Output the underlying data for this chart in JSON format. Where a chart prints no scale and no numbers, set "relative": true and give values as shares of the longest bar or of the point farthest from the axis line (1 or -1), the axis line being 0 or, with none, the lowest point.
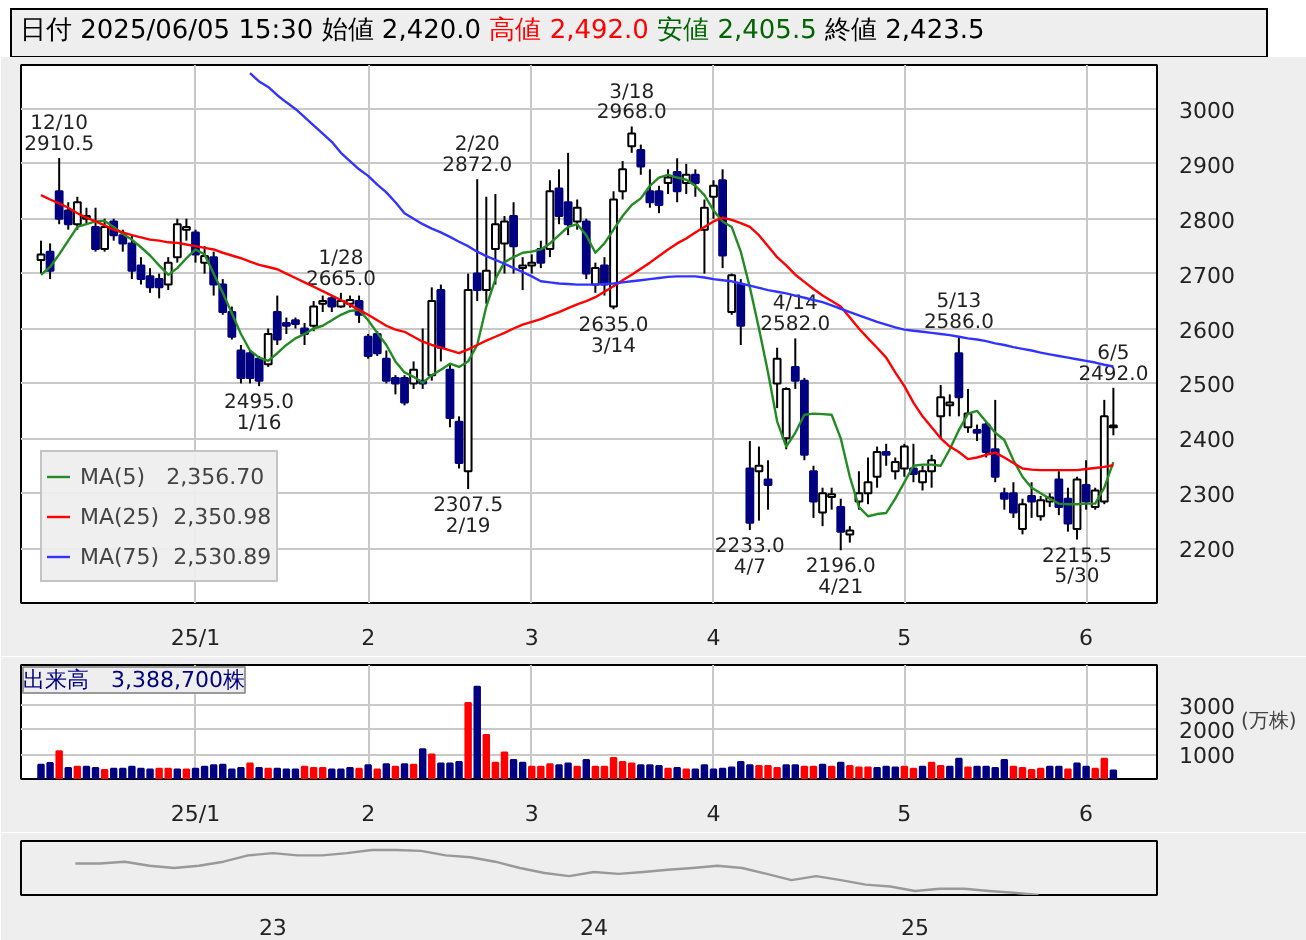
{
  "chart_data": [
    {
      "type": "candlestick",
      "title": "日付 2025/06/05 15:30",
      "annotations": [
        "始値 2,420.0",
        "高値 2,492.0",
        "安値 2,405.5",
        "終値 2,423.5",
        {
          "text": "12/10\n2910.5",
          "y": 2910.5
        },
        {
          "text": "1/28\n2665.0",
          "y": 2665.0
        },
        {
          "text": "2495.0\n1/16",
          "y": 2495.0
        },
        {
          "text": "2/20\n2872.0",
          "y": 2872.0
        },
        {
          "text": "2307.5\n2/19",
          "y": 2307.5
        },
        {
          "text": "3/18\n2968.0",
          "y": 2968.0
        },
        {
          "text": "2635.0\n3/14",
          "y": 2635.0
        },
        {
          "text": "4/14\n2582.0",
          "y": 2582.0
        },
        {
          "text": "2233.0\n4/7",
          "y": 2233.0
        },
        {
          "text": "2196.0\n4/21",
          "y": 2196.0
        },
        {
          "text": "5/13\n2586.0",
          "y": 2586.0
        },
        {
          "text": "2215.5\n5/30",
          "y": 2215.5
        },
        {
          "text": "6/5\n2492.0",
          "y": 2492.0
        }
      ],
      "categories": [
        null,
        null,
        null,
        null,
        null,
        null,
        null,
        null,
        null,
        null,
        null,
        null,
        null,
        null,
        null,
        null,
        null,
        "25/1",
        null,
        null,
        null,
        null,
        null,
        null,
        null,
        null,
        null,
        null,
        null,
        null,
        null,
        null,
        null,
        null,
        null,
        null,
        "2",
        null,
        null,
        null,
        null,
        null,
        null,
        null,
        null,
        null,
        null,
        null,
        null,
        null,
        null,
        null,
        null,
        null,
        "3",
        null,
        null,
        null,
        null,
        null,
        null,
        null,
        null,
        null,
        null,
        null,
        null,
        null,
        null,
        null,
        null,
        null,
        null,
        null,
        "4",
        null,
        null,
        null,
        null,
        null,
        null,
        null,
        null,
        null,
        null,
        null,
        null,
        null,
        null,
        null,
        null,
        null,
        null,
        null,
        null,
        "5",
        null,
        null,
        null,
        null,
        null,
        null,
        null,
        null,
        null,
        null,
        null,
        null,
        null,
        null,
        null,
        null,
        null,
        null,
        null,
        "6",
        null,
        null,
        null
      ],
      "ohlc": [
        [
          2725,
          2760,
          2700,
          2735
        ],
        [
          2740,
          2755,
          2690,
          2705
        ],
        [
          2850,
          2910.5,
          2790,
          2800
        ],
        [
          2815,
          2830,
          2780,
          2790
        ],
        [
          2790,
          2840,
          2780,
          2830
        ],
        [
          2800,
          2820,
          2790,
          2805
        ],
        [
          2785,
          2820,
          2740,
          2745
        ],
        [
          2745,
          2800,
          2740,
          2785
        ],
        [
          2795,
          2800,
          2760,
          2770
        ],
        [
          2770,
          2780,
          2740,
          2755
        ],
        [
          2755,
          2770,
          2690,
          2705
        ],
        [
          2715,
          2730,
          2680,
          2690
        ],
        [
          2695,
          2710,
          2665,
          2675
        ],
        [
          2690,
          2700,
          2655,
          2675
        ],
        [
          2680,
          2730,
          2670,
          2720
        ],
        [
          2730,
          2800,
          2720,
          2790
        ],
        [
          2780,
          2800,
          2760,
          2785
        ],
        [
          2775,
          2780,
          2720,
          2735
        ],
        [
          2720,
          2750,
          2700,
          2732
        ],
        [
          2730,
          2740,
          2660,
          2680
        ],
        [
          2680,
          2690,
          2625,
          2630
        ],
        [
          2630,
          2640,
          2580,
          2585
        ],
        [
          2560,
          2570,
          2500,
          2510
        ],
        [
          2555,
          2560,
          2500,
          2510
        ],
        [
          2545,
          2550,
          2495.0,
          2505
        ],
        [
          2535,
          2600,
          2530,
          2590
        ],
        [
          2630,
          2660,
          2570,
          2580
        ],
        [
          2610,
          2620,
          2590,
          2605
        ],
        [
          2615,
          2620,
          2600,
          2608
        ],
        [
          2600,
          2610,
          2570,
          2590
        ],
        [
          2605,
          2650,
          2595,
          2640
        ],
        [
          2645,
          2660,
          2630,
          2650
        ],
        [
          2655,
          2660,
          2630,
          2640
        ],
        [
          2640,
          2665.0,
          2638,
          2650
        ],
        [
          2645,
          2660,
          2638,
          2652
        ],
        [
          2650,
          2660,
          2610,
          2625
        ],
        [
          2585,
          2590,
          2545,
          2550
        ],
        [
          2590,
          2595,
          2550,
          2555
        ],
        [
          2545,
          2560,
          2500,
          2505
        ],
        [
          2510,
          2515,
          2480,
          2500
        ],
        [
          2510,
          2515,
          2460,
          2465
        ],
        [
          2500,
          2540,
          2490,
          2525
        ],
        [
          2505,
          2600,
          2490,
          2500
        ],
        [
          2515,
          2675,
          2505,
          2650
        ],
        [
          2670,
          2680,
          2540,
          2565
        ],
        [
          2525,
          2535,
          2420,
          2437
        ],
        [
          2430,
          2440,
          2345,
          2355
        ],
        [
          2340,
          2700,
          2307.5,
          2670
        ],
        [
          2700,
          2872.0,
          2650,
          2670
        ],
        [
          2670,
          2840,
          2645,
          2705
        ],
        [
          2745,
          2845,
          2680,
          2790
        ],
        [
          2755,
          2805,
          2700,
          2795
        ],
        [
          2805,
          2830,
          2700,
          2750
        ],
        [
          2710,
          2730,
          2670,
          2715
        ],
        [
          2715,
          2735,
          2700,
          2720
        ],
        [
          2745,
          2760,
          2710,
          2720
        ],
        [
          2745,
          2870,
          2730,
          2850
        ],
        [
          2855,
          2890,
          2790,
          2805
        ],
        [
          2830,
          2920,
          2770,
          2790
        ],
        [
          2795,
          2835,
          2780,
          2820
        ],
        [
          2795,
          2800,
          2690,
          2700
        ],
        [
          2680,
          2720,
          2665,
          2710
        ],
        [
          2715,
          2730,
          2660,
          2680
        ],
        [
          2640,
          2850,
          2635.0,
          2835
        ],
        [
          2850,
          2905,
          2835,
          2890
        ],
        [
          2932,
          2968.0,
          2920,
          2955
        ],
        [
          2925,
          2935,
          2880,
          2895
        ],
        [
          2850,
          2890,
          2820,
          2830
        ],
        [
          2850,
          2860,
          2810,
          2825
        ],
        [
          2865,
          2890,
          2845,
          2875
        ],
        [
          2885,
          2910,
          2830,
          2850
        ],
        [
          2865,
          2900,
          2845,
          2880
        ],
        [
          2880,
          2890,
          2840,
          2865
        ],
        [
          2780,
          2835,
          2700,
          2820
        ],
        [
          2840,
          2870,
          2800,
          2860
        ],
        [
          2870,
          2890,
          2710,
          2733
        ],
        [
          2630,
          2700,
          2625,
          2697
        ],
        [
          2680,
          2690,
          2570,
          2605
        ],
        [
          2345,
          2395,
          2233.0,
          2246
        ],
        [
          2340,
          2385,
          2250,
          2350
        ],
        [
          2325,
          2360,
          2270,
          2315
        ],
        [
          2500,
          2565,
          2455,
          2545
        ],
        [
          2400,
          2493,
          2380,
          2490
        ],
        [
          2530,
          2582.0,
          2490,
          2505
        ],
        [
          2505,
          2510,
          2360,
          2370
        ],
        [
          2340,
          2350,
          2255,
          2285
        ],
        [
          2265,
          2310,
          2240,
          2300
        ],
        [
          2293,
          2310,
          2270,
          2298
        ],
        [
          2275,
          2290,
          2196.0,
          2230
        ],
        [
          2225,
          2240,
          2210,
          2232
        ],
        [
          2285,
          2340,
          2270,
          2300
        ],
        [
          2300,
          2365,
          2280,
          2320
        ],
        [
          2330,
          2385,
          2310,
          2375
        ],
        [
          2375,
          2390,
          2350,
          2370
        ],
        [
          2340,
          2365,
          2325,
          2357
        ],
        [
          2345,
          2390,
          2330,
          2385
        ],
        [
          2345,
          2390,
          2320,
          2335
        ],
        [
          2320,
          2350,
          2305,
          2340
        ],
        [
          2340,
          2370,
          2310,
          2360
        ],
        [
          2440,
          2497,
          2400,
          2475
        ],
        [
          2460,
          2480,
          2440,
          2465
        ],
        [
          2555,
          2586.0,
          2440,
          2475
        ],
        [
          2420,
          2490,
          2410,
          2445
        ],
        [
          2415,
          2425,
          2395,
          2410
        ],
        [
          2425,
          2430,
          2365,
          2375
        ],
        [
          2380,
          2470,
          2320,
          2330
        ],
        [
          2300,
          2310,
          2270,
          2290
        ],
        [
          2300,
          2320,
          2255,
          2265
        ],
        [
          2235,
          2290,
          2225,
          2280
        ],
        [
          2295,
          2320,
          2255,
          2285
        ],
        [
          2258,
          2295,
          2250,
          2287
        ],
        [
          2285,
          2300,
          2275,
          2292
        ],
        [
          2325,
          2340,
          2260,
          2275
        ],
        [
          2290,
          2310,
          2230,
          2245
        ],
        [
          2235,
          2330,
          2215.5,
          2325
        ],
        [
          2315,
          2360,
          2270,
          2285
        ],
        [
          2275,
          2310,
          2270,
          2305
        ],
        [
          2285,
          2470,
          2280,
          2440
        ],
        [
          2420.0,
          2492.0,
          2405.5,
          2423.5
        ]
      ],
      "series": [
        {
          "type": "line",
          "name": "MA(5)   2,356.70",
          "color": "#228b22",
          "values": [
            2698,
            2712,
            2735,
            2760,
            2785,
            2790,
            2795,
            2796,
            2785,
            2772,
            2762,
            2748,
            2733,
            2715,
            2698,
            2710,
            2728,
            2744,
            2735,
            2700,
            2665,
            2628,
            2590,
            2560,
            2547,
            2541,
            2555,
            2570,
            2582,
            2590,
            2600,
            2605,
            2615,
            2625,
            2632,
            2634,
            2615,
            2592,
            2570,
            2540,
            2520,
            2512,
            2501,
            2515,
            2525,
            2536,
            2530,
            2540,
            2570,
            2640,
            2690,
            2721,
            2730,
            2738,
            2740,
            2744,
            2755,
            2770,
            2785,
            2790,
            2770,
            2738,
            2755,
            2780,
            2805,
            2825,
            2837,
            2860,
            2875,
            2880,
            2875,
            2871,
            2860,
            2843,
            2815,
            2795,
            2785,
            2740,
            2675,
            2600,
            2520,
            2431,
            2385,
            2410,
            2443,
            2445,
            2444,
            2443,
            2400,
            2330,
            2275,
            2258,
            2262,
            2264,
            2290,
            2320,
            2350,
            2352,
            2352,
            2350,
            2380,
            2415,
            2445,
            2450,
            2430,
            2410,
            2397,
            2360,
            2330,
            2310,
            2300,
            2290,
            2281,
            2280,
            2280,
            2281,
            2281,
            2310,
            2356.7
          ]
        },
        {
          "type": "line",
          "name": "MA(25)  2,350.98",
          "color": "#ff0000",
          "values": [
            2843,
            2835,
            2828,
            2820,
            2810,
            2802,
            2795,
            2788,
            2780,
            2775,
            2770,
            2766,
            2762,
            2760,
            2757,
            2756,
            2753,
            2750,
            2747,
            2744,
            2738,
            2733,
            2728,
            2722,
            2716,
            2712,
            2708,
            2700,
            2692,
            2684,
            2676,
            2668,
            2660,
            2652,
            2643,
            2634,
            2625,
            2615,
            2605,
            2598,
            2594,
            2585,
            2576,
            2570,
            2565,
            2560,
            2555,
            2562,
            2570,
            2578,
            2585,
            2592,
            2600,
            2607,
            2612,
            2617,
            2624,
            2630,
            2637,
            2644,
            2650,
            2657,
            2667,
            2677,
            2688,
            2698,
            2709,
            2720,
            2732,
            2744,
            2755,
            2764,
            2775,
            2785,
            2795,
            2802,
            2798,
            2792,
            2785,
            2770,
            2750,
            2730,
            2715,
            2698,
            2685,
            2672,
            2660,
            2650,
            2640,
            2620,
            2600,
            2582,
            2565,
            2547,
            2520,
            2495,
            2465,
            2440,
            2420,
            2400,
            2385,
            2375,
            2362,
            2365,
            2370,
            2374,
            2365,
            2355,
            2345,
            2343,
            2342,
            2342,
            2342,
            2342,
            2342,
            2344,
            2346,
            2348,
            2350.98
          ]
        },
        {
          "type": "line",
          "name": "MA(75)  2,530.89",
          "color": "#3333ff",
          "values": [
            null,
            null,
            null,
            null,
            null,
            null,
            null,
            null,
            null,
            null,
            null,
            null,
            null,
            null,
            null,
            null,
            null,
            null,
            null,
            null,
            null,
            null,
            null,
            3065,
            3050,
            3040,
            3025,
            3012,
            3000,
            2985,
            2970,
            2955,
            2940,
            2920,
            2905,
            2890,
            2878,
            2862,
            2848,
            2830,
            2810,
            2800,
            2790,
            2782,
            2775,
            2767,
            2758,
            2750,
            2740,
            2732,
            2725,
            2718,
            2710,
            2703,
            2695,
            2686,
            2684,
            2682,
            2681,
            2680,
            2680,
            2680,
            2681,
            2682,
            2684,
            2686,
            2688,
            2690,
            2692,
            2694,
            2695,
            2695,
            2695,
            2693,
            2690,
            2688,
            2686,
            2682,
            2678,
            2674,
            2670,
            2667,
            2664,
            2660,
            2656,
            2652,
            2648,
            2642,
            2636,
            2630,
            2624,
            2618,
            2612,
            2607,
            2602,
            2598,
            2596,
            2594,
            2592,
            2590,
            2588,
            2585,
            2582,
            2580,
            2577,
            2573,
            2570,
            2566,
            2563,
            2560,
            2556,
            2553,
            2550,
            2547,
            2544,
            2541,
            2538,
            2534,
            2530.89
          ]
        }
      ],
      "ylim": [
        2100,
        3080
      ],
      "yticks": [
        2200,
        2300,
        2400,
        2500,
        2600,
        2700,
        2800,
        2900,
        3000
      ],
      "grid": true,
      "legend": "bottom left"
    },
    {
      "type": "bar",
      "title": "出来高　3,388,700株",
      "ylabel": "(万株)",
      "categories": [
        null,
        null,
        null,
        null,
        null,
        null,
        null,
        null,
        null,
        null,
        null,
        null,
        null,
        null,
        null,
        null,
        null,
        "25/1",
        null,
        null,
        null,
        null,
        null,
        null,
        null,
        null,
        null,
        null,
        null,
        null,
        null,
        null,
        null,
        null,
        null,
        null,
        "2",
        null,
        null,
        null,
        null,
        null,
        null,
        null,
        null,
        null,
        null,
        null,
        null,
        null,
        null,
        null,
        null,
        null,
        "3",
        null,
        null,
        null,
        null,
        null,
        null,
        null,
        null,
        null,
        null,
        null,
        null,
        null,
        null,
        null,
        null,
        null,
        null,
        null,
        "4",
        null,
        null,
        null,
        null,
        null,
        null,
        null,
        null,
        null,
        null,
        null,
        null,
        null,
        null,
        null,
        null,
        null,
        null,
        null,
        null,
        "5",
        null,
        null,
        null,
        null,
        null,
        null,
        null,
        null,
        null,
        null,
        null,
        null,
        null,
        null,
        null,
        null,
        null,
        null,
        null,
        "6",
        null,
        null,
        null
      ],
      "values": [
        575,
        650,
        1120,
        440,
        490,
        490,
        440,
        360,
        410,
        410,
        490,
        410,
        380,
        410,
        410,
        380,
        380,
        410,
        490,
        550,
        575,
        380,
        440,
        630,
        440,
        410,
        410,
        380,
        380,
        490,
        440,
        440,
        380,
        380,
        440,
        410,
        550,
        380,
        600,
        490,
        600,
        575,
        1200,
        990,
        630,
        630,
        685,
        3070,
        3725,
        1780,
        660,
        1070,
        770,
        660,
        490,
        490,
        600,
        550,
        630,
        490,
        770,
        490,
        490,
        850,
        685,
        630,
        550,
        550,
        520,
        410,
        440,
        380,
        380,
        550,
        380,
        410,
        465,
        685,
        550,
        520,
        520,
        440,
        550,
        550,
        490,
        490,
        575,
        490,
        660,
        520,
        465,
        465,
        440,
        490,
        465,
        490,
        410,
        490,
        660,
        520,
        490,
        820,
        465,
        490,
        490,
        440,
        770,
        490,
        440,
        360,
        410,
        490,
        490,
        380,
        630,
        490,
        410,
        820,
        338.87
      ],
      "colors": [
        "#000080",
        "#000080",
        "#ff0000",
        "#000080",
        "#ff0000",
        "#000080",
        "#000080",
        "#ff0000",
        "#000080",
        "#000080",
        "#000080",
        "#000080",
        "#000080",
        "#ff0000",
        "#ff0000",
        "#000080",
        "#ff0000",
        "#000080",
        "#000080",
        "#000080",
        "#000080",
        "#000080",
        "#000080",
        "#ff0000",
        "#000080",
        "#ff0000",
        "#000080",
        "#000080",
        "#000080",
        "#ff0000",
        "#ff0000",
        "#ff0000",
        "#000080",
        "#000080",
        "#000080",
        "#ff0000",
        "#000080",
        "#ff0000",
        "#000080",
        "#ff0000",
        "#000080",
        "#ff0000",
        "#000080",
        "#ff0000",
        "#000080",
        "#000080",
        "#000080",
        "#ff0000",
        "#000080",
        "#ff0000",
        "#ff0000",
        "#ff0000",
        "#000080",
        "#000080",
        "#ff0000",
        "#ff0000",
        "#ff0000",
        "#000080",
        "#000080",
        "#ff0000",
        "#000080",
        "#ff0000",
        "#ff0000",
        "#ff0000",
        "#ff0000",
        "#ff0000",
        "#000080",
        "#000080",
        "#000080",
        "#ff0000",
        "#000080",
        "#ff0000",
        "#000080",
        "#000080",
        "#000080",
        "#000080",
        "#000080",
        "#000080",
        "#000080",
        "#ff0000",
        "#ff0000",
        "#ff0000",
        "#000080",
        "#000080",
        "#ff0000",
        "#ff0000",
        "#000080",
        "#ff0000",
        "#000080",
        "#ff0000",
        "#ff0000",
        "#ff0000",
        "#000080",
        "#000080",
        "#000080",
        "#ff0000",
        "#ff0000",
        "#000080",
        "#ff0000",
        "#ff0000",
        "#000080",
        "#000080",
        "#ff0000",
        "#000080",
        "#000080",
        "#000080",
        "#000080",
        "#ff0000",
        "#ff0000",
        "#ff0000",
        "#ff0000",
        "#000080",
        "#000080",
        "#ff0000",
        "#000080",
        "#000080",
        "#ff0000",
        "#ff0000",
        "#000080"
      ],
      "ylim": [
        0,
        4600
      ],
      "yticks": [
        1000,
        2000,
        3000
      ],
      "grid": true
    },
    {
      "type": "line",
      "relative": true,
      "categories": [
        null,
        null,
        null,
        null,
        null,
        null,
        null,
        null,
        "23",
        null,
        null,
        null,
        null,
        null,
        null,
        null,
        null,
        null,
        null,
        null,
        null,
        "24",
        null,
        null,
        null,
        null,
        null,
        null,
        null,
        null,
        null,
        null,
        null,
        null,
        "25",
        null,
        null,
        null,
        null,
        null
      ],
      "series": [
        {
          "color": "#999999",
          "values": [
            0.7,
            0.7,
            0.74,
            0.65,
            0.6,
            0.65,
            0.74,
            0.88,
            0.93,
            0.88,
            0.88,
            0.93,
            1,
            1,
            0.98,
            0.88,
            0.84,
            0.74,
            0.6,
            0.49,
            0.42,
            0.51,
            0.47,
            0.51,
            0.56,
            0.6,
            0.65,
            0.6,
            0.47,
            0.33,
            0.42,
            0.33,
            0.23,
            0.19,
            0.09,
            0.14,
            0.14,
            0.09,
            0.05,
            0
          ]
        }
      ]
    }
  ]
}
